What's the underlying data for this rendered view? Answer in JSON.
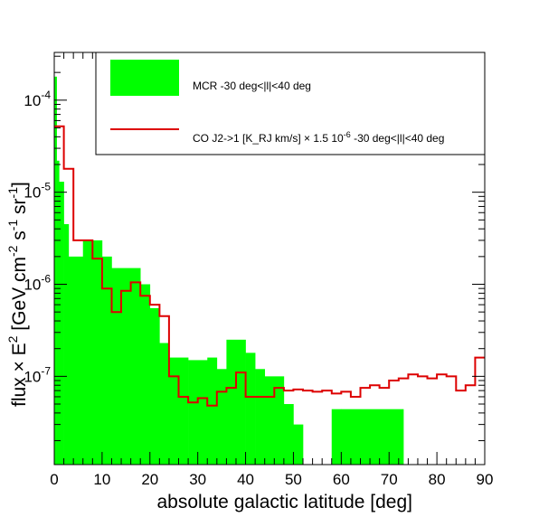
{
  "chart_data": {
    "type": "bar",
    "xlabel": "absolute galactic latitude [deg]",
    "ylabel_parts": [
      "flux",
      "×",
      "E",
      "2",
      "[GeV cm",
      "-2",
      "s",
      "-1",
      "sr",
      "-1",
      "]"
    ],
    "xlim": [
      0,
      90
    ],
    "ylim": [
      1.1e-08,
      0.00033
    ],
    "y_scale": "log",
    "x_ticks": [
      "0",
      "10",
      "20",
      "30",
      "40",
      "50",
      "60",
      "70",
      "80",
      "90"
    ],
    "y_ticks": [
      {
        "value": 1e-07,
        "base": "10",
        "exp": "-7"
      },
      {
        "value": 1e-06,
        "base": "10",
        "exp": "-6"
      },
      {
        "value": 1e-05,
        "base": "10",
        "exp": "-5"
      },
      {
        "value": 0.0001,
        "base": "10",
        "exp": "-4"
      }
    ],
    "legend_position": "top-right",
    "series": [
      {
        "name": "MCR -30 deg<|l|<40 deg",
        "style": "filled-histogram",
        "color": "#00ff00",
        "bins": [
          [
            0,
            0.5,
            0.00018
          ],
          [
            0.5,
            1,
            2.2e-05
          ],
          [
            1,
            2,
            1.3e-05
          ],
          [
            2,
            3,
            4.5e-06
          ],
          [
            3,
            6,
            2e-06
          ],
          [
            6,
            10,
            3e-06
          ],
          [
            10,
            12,
            2e-06
          ],
          [
            12,
            18,
            1.5e-06
          ],
          [
            18,
            20,
            1e-06
          ],
          [
            20,
            22,
            5.5e-07
          ],
          [
            22,
            24,
            2.3e-07
          ],
          [
            24,
            28,
            1.6e-07
          ],
          [
            28,
            32,
            1.5e-07
          ],
          [
            32,
            34,
            1.6e-07
          ],
          [
            34,
            36,
            1.2e-07
          ],
          [
            36,
            40,
            2.5e-07
          ],
          [
            40,
            42,
            1.8e-07
          ],
          [
            42,
            44,
            1.2e-07
          ],
          [
            44,
            48,
            1e-07
          ],
          [
            48,
            50,
            5e-08
          ],
          [
            50,
            52,
            3e-08
          ],
          [
            52,
            58,
            1.1e-08
          ],
          [
            58,
            60,
            4.4e-08
          ],
          [
            60,
            73,
            4.4e-08
          ]
        ]
      },
      {
        "name": "CO J2->1 [K_RJ km/s] × 1.5 10",
        "name_exp": "-6",
        "name_tail": " -30 deg<|l|<40 deg",
        "style": "step",
        "color": "#dd0000",
        "bins": [
          [
            0,
            2,
            5.2e-05
          ],
          [
            2,
            4,
            1.8e-05
          ],
          [
            4,
            8,
            3e-06
          ],
          [
            8,
            10,
            1.9e-06
          ],
          [
            10,
            12,
            9e-07
          ],
          [
            12,
            14,
            5e-07
          ],
          [
            14,
            16,
            8.5e-07
          ],
          [
            16,
            18,
            1.05e-06
          ],
          [
            18,
            20,
            7.5e-07
          ],
          [
            20,
            22,
            6e-07
          ],
          [
            22,
            24,
            4.5e-07
          ],
          [
            24,
            26,
            1e-07
          ],
          [
            26,
            28,
            6e-08
          ],
          [
            28,
            30,
            5.2e-08
          ],
          [
            30,
            32,
            5.8e-08
          ],
          [
            32,
            34,
            4.8e-08
          ],
          [
            34,
            36,
            6.8e-08
          ],
          [
            36,
            38,
            7.5e-08
          ],
          [
            38,
            40,
            1.1e-07
          ],
          [
            40,
            42,
            6e-08
          ],
          [
            42,
            44,
            6e-08
          ],
          [
            44,
            46,
            6e-08
          ],
          [
            46,
            48,
            7.5e-08
          ],
          [
            48,
            50,
            7e-08
          ],
          [
            50,
            52,
            7.2e-08
          ],
          [
            52,
            54,
            7e-08
          ],
          [
            54,
            56,
            6.8e-08
          ],
          [
            56,
            58,
            7e-08
          ],
          [
            58,
            60,
            6.5e-08
          ],
          [
            60,
            62,
            6.8e-08
          ],
          [
            62,
            64,
            6e-08
          ],
          [
            64,
            66,
            7.5e-08
          ],
          [
            66,
            68,
            8e-08
          ],
          [
            68,
            70,
            7.5e-08
          ],
          [
            70,
            72,
            9e-08
          ],
          [
            72,
            74,
            9.5e-08
          ],
          [
            74,
            76,
            1.05e-07
          ],
          [
            76,
            78,
            1e-07
          ],
          [
            78,
            80,
            9.5e-08
          ],
          [
            80,
            82,
            1.05e-07
          ],
          [
            82,
            84,
            1e-07
          ],
          [
            84,
            86,
            7e-08
          ],
          [
            86,
            88,
            8e-08
          ],
          [
            88,
            90,
            1.6e-07
          ]
        ]
      }
    ]
  }
}
